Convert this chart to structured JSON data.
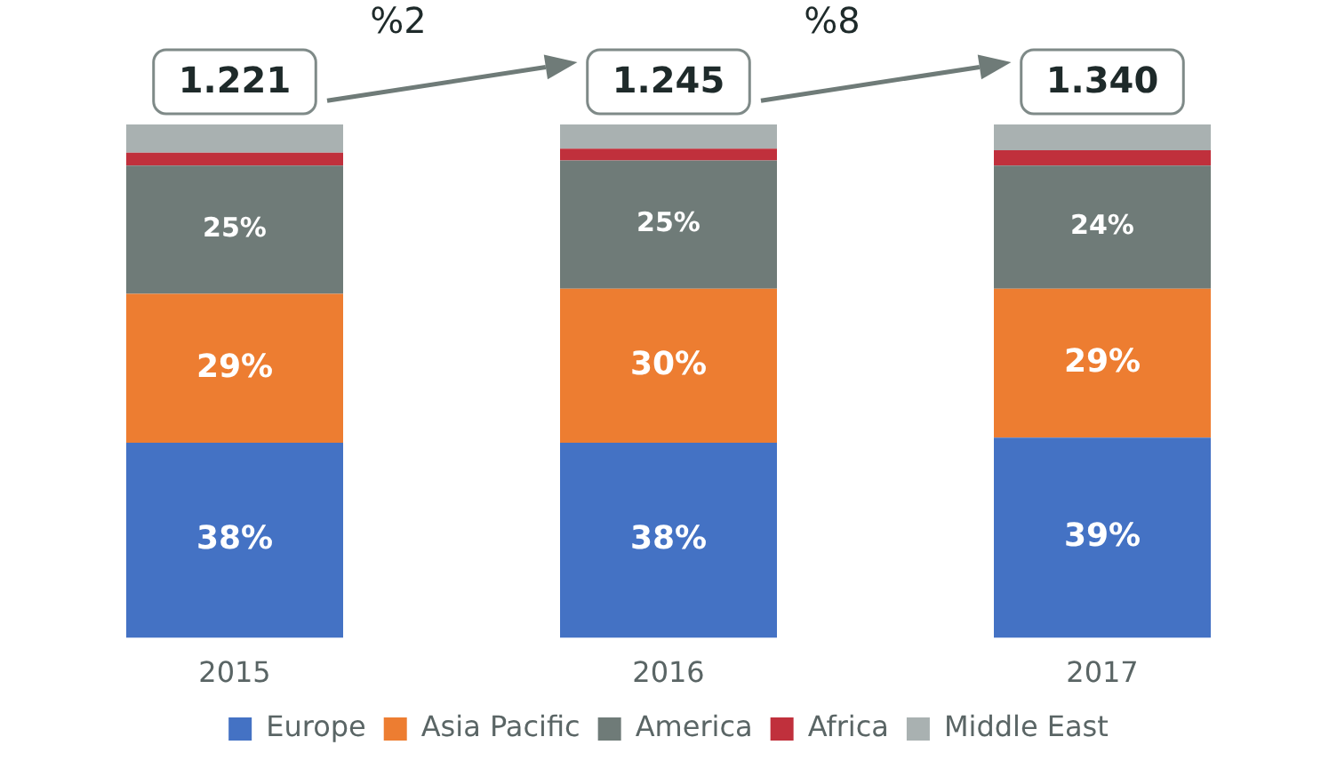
{
  "chart_data": {
    "type": "bar",
    "stacked": true,
    "categories": [
      "2015",
      "2016",
      "2017"
    ],
    "series": [
      {
        "name": "Europe",
        "color": "#4472c4",
        "values": [
          38,
          38,
          39
        ],
        "value_labels": [
          "38%",
          "38%",
          "39%"
        ]
      },
      {
        "name": "Asia Pacific",
        "color": "#ed7d31",
        "values": [
          29,
          30,
          29
        ],
        "value_labels": [
          "29%",
          "30%",
          "29%"
        ]
      },
      {
        "name": "America",
        "color": "#6f7b78",
        "values": [
          25,
          25,
          24
        ],
        "value_labels": [
          "25%",
          "25%",
          "24%"
        ]
      },
      {
        "name": "Africa",
        "color": "#c0303c",
        "values": [
          2.5,
          2.3,
          3
        ],
        "value_labels": [
          null,
          null,
          null
        ]
      },
      {
        "name": "Middle East",
        "color": "#a9b1b1",
        "values": [
          5.5,
          4.7,
          5
        ],
        "value_labels": [
          null,
          null,
          null
        ]
      }
    ],
    "ylim": [
      0,
      100
    ],
    "annotations": [
      {
        "text": "1.221",
        "x": "2015",
        "y": 100
      },
      {
        "text": "1.245",
        "x": "2016",
        "y": 100
      },
      {
        "text": "1.340",
        "x": "2017",
        "y": 100
      },
      "%2",
      "%8"
    ],
    "legend": "bottom",
    "grid": false
  }
}
